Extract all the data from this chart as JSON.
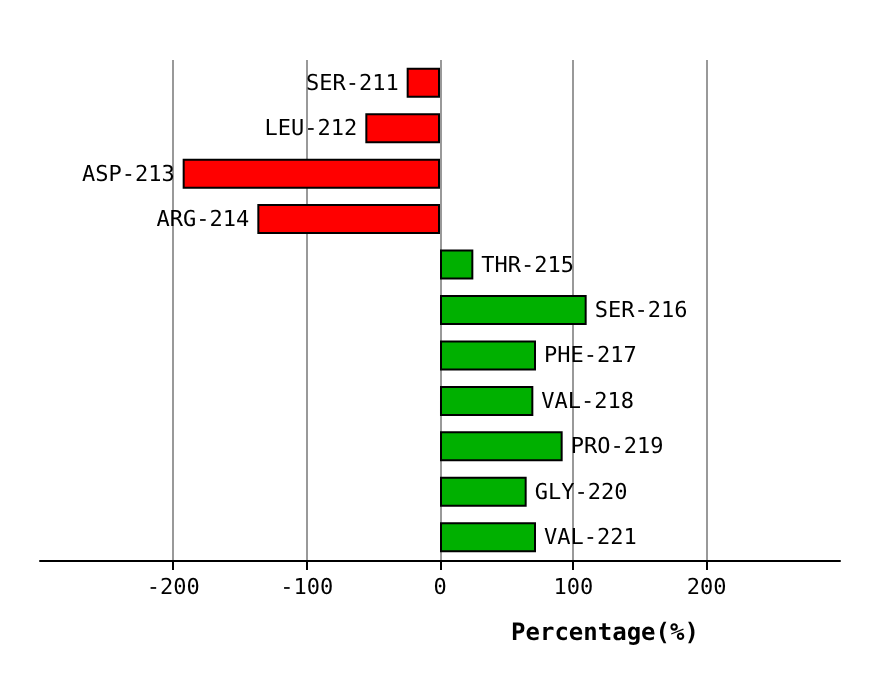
{
  "chart_data": {
    "type": "bar",
    "orientation": "horizontal",
    "xlabel": "Percentage(%)",
    "categories": [
      "SER-211",
      "LEU-212",
      "ASP-213",
      "ARG-214",
      "THR-215",
      "SER-216",
      "PHE-217",
      "VAL-218",
      "PRO-219",
      "GLY-220",
      "VAL-221"
    ],
    "values": [
      -25,
      -56,
      -193,
      -137,
      25,
      110,
      72,
      70,
      92,
      65,
      72
    ],
    "colors": [
      "#ff0000",
      "#ff0000",
      "#ff0000",
      "#ff0000",
      "#00b000",
      "#00b000",
      "#00b000",
      "#00b000",
      "#00b000",
      "#00b000",
      "#00b000"
    ],
    "xlim": [
      -300,
      300
    ],
    "xticks": [
      -200,
      -100,
      0,
      100,
      200
    ],
    "grid": "x"
  }
}
